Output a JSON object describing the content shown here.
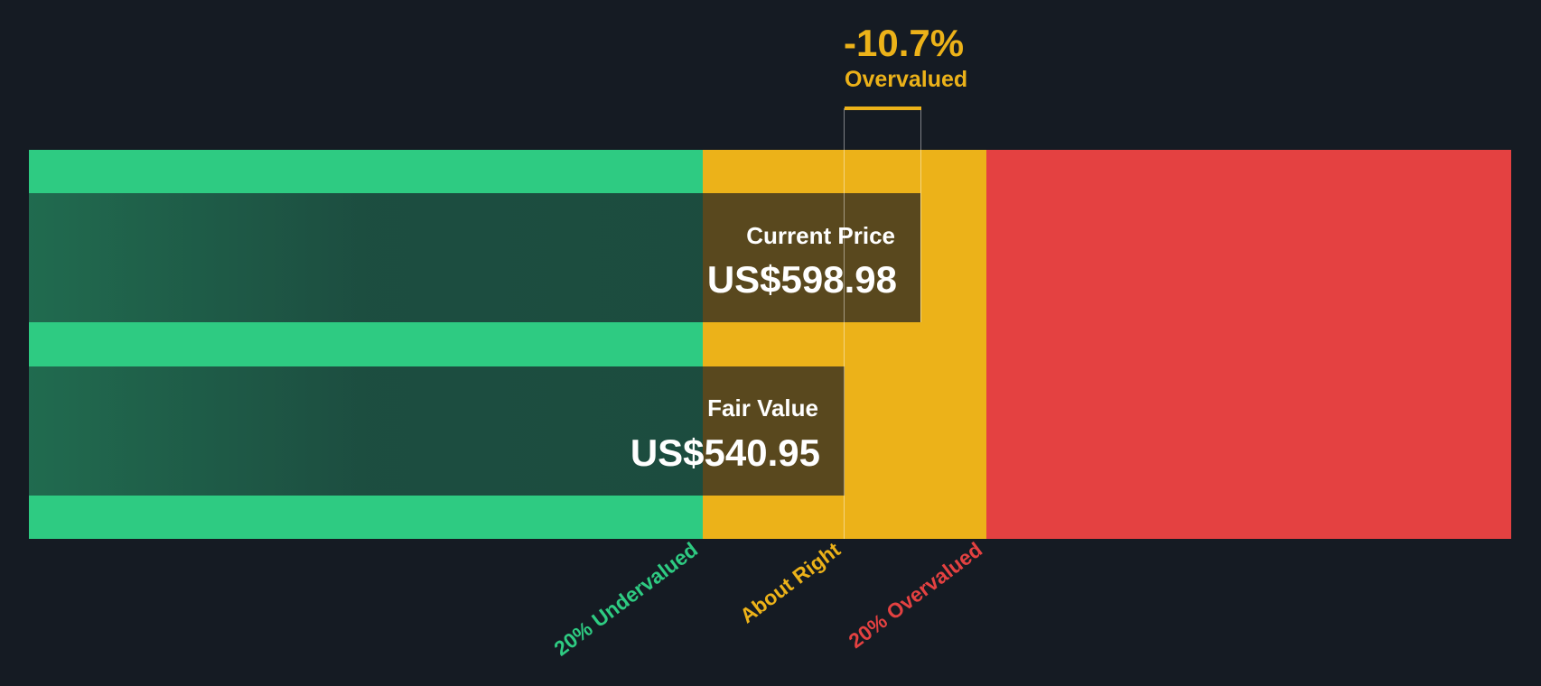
{
  "chart_data": {
    "type": "bar",
    "title": "",
    "bars": [
      {
        "label": "Current Price",
        "value_text": "US$598.98",
        "value": 598.98
      },
      {
        "label": "Fair Value",
        "value_text": "US$540.95",
        "value": 540.95
      }
    ],
    "difference": {
      "percent": "-10.7%",
      "verdict": "Overvalued"
    },
    "zones": [
      {
        "label": "20% Undervalued",
        "color": "#2ecb82"
      },
      {
        "label": "About Right",
        "color": "#ecb219"
      },
      {
        "label": "20% Overvalued",
        "color": "#e44141"
      }
    ]
  },
  "colors": {
    "background": "#151b23",
    "accent": "#ecb219"
  }
}
